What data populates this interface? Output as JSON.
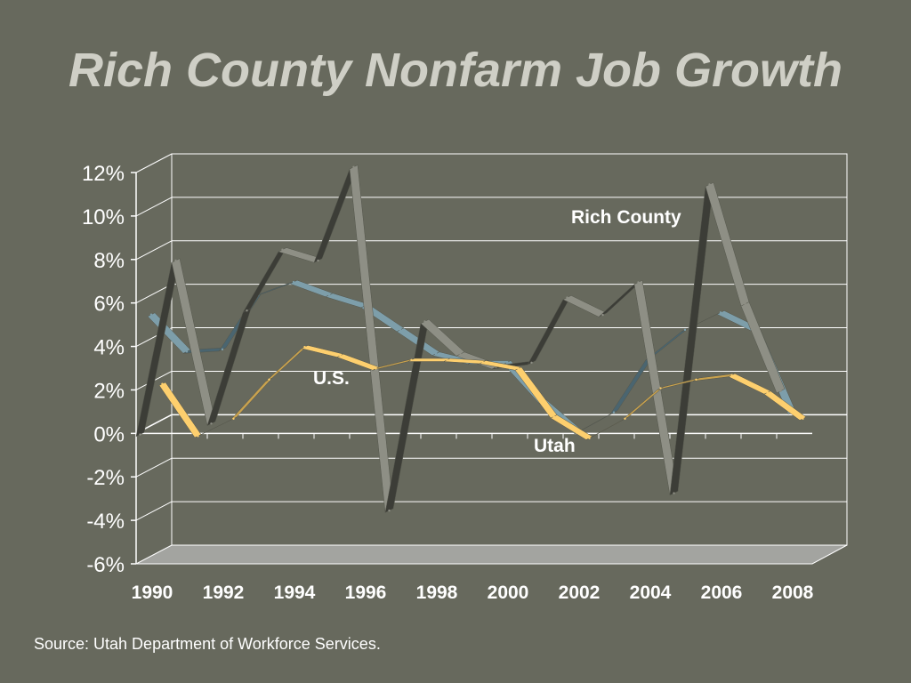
{
  "title": "Rich County Nonfarm Job Growth",
  "source": "Source: Utah Department of Workforce Services.",
  "chart_data": {
    "type": "line",
    "x": [
      1990,
      1991,
      1992,
      1993,
      1994,
      1995,
      1996,
      1997,
      1998,
      1999,
      2000,
      2001,
      2002,
      2003,
      2004,
      2005,
      2006,
      2007,
      2008
    ],
    "ylim": [
      -6,
      12
    ],
    "y_tick_labels": [
      "12%",
      "10%",
      "8%",
      "6%",
      "4%",
      "2%",
      "0%",
      "-2%",
      "-4%",
      "-6%"
    ],
    "x_tick_labels": [
      "1990",
      "1992",
      "1994",
      "1996",
      "1998",
      "2000",
      "2002",
      "2004",
      "2006",
      "2008"
    ],
    "grid": true,
    "style": "3d ribbon lines",
    "series": [
      {
        "name": "Rich County",
        "color": "#8e8f85",
        "shade": "#3c3d37",
        "values": [
          -1.0,
          7.0,
          -0.5,
          4.7,
          7.5,
          7.0,
          11.3,
          -4.5,
          4.2,
          2.7,
          2.1,
          2.3,
          5.3,
          4.5,
          6.0,
          -3.7,
          10.5,
          5.0,
          1.0
        ]
      },
      {
        "name": "Utah",
        "color": "#7d9eaa",
        "shade": "#4a6570",
        "values": [
          4.8,
          3.1,
          3.2,
          5.7,
          6.3,
          5.7,
          5.2,
          4.1,
          3.0,
          2.6,
          2.6,
          0.8,
          -0.6,
          0.3,
          2.8,
          4.1,
          4.9,
          4.1,
          0.3
        ]
      },
      {
        "name": "U.S.",
        "color": "#fdcf6e",
        "shade": "#c9a24e",
        "values": [
          1.9,
          -0.5,
          0.3,
          2.1,
          3.6,
          3.2,
          2.6,
          3.0,
          3.0,
          2.9,
          2.6,
          0.4,
          -0.6,
          0.3,
          1.7,
          2.1,
          2.3,
          1.5,
          0.3
        ]
      }
    ]
  }
}
